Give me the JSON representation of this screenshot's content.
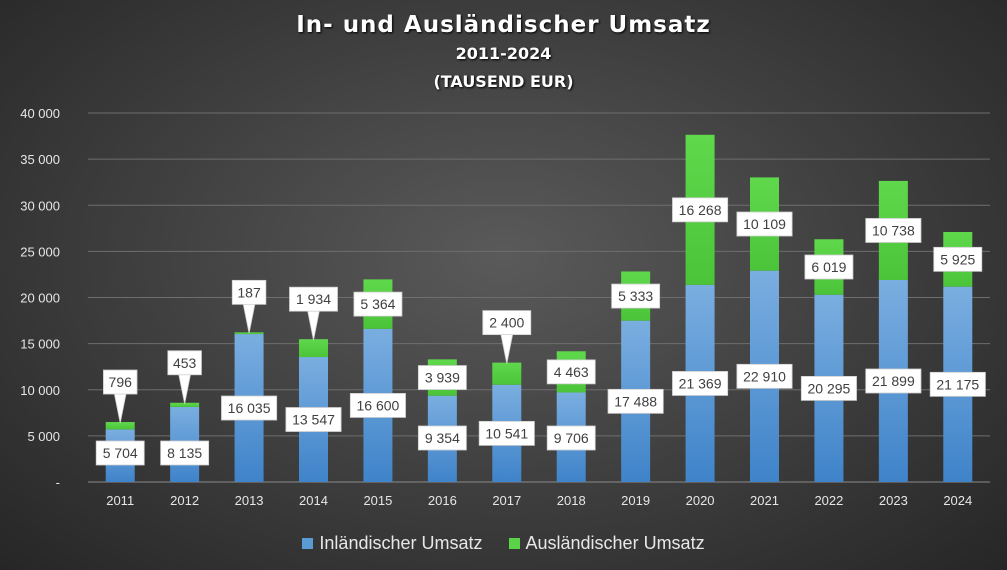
{
  "chart_data": {
    "type": "bar",
    "stacked": true,
    "title": "In- und Ausländischer Umsatz",
    "subtitle": "2011-2024",
    "subtitle2": "(TAUSEND EUR)",
    "categories": [
      "2011",
      "2012",
      "2013",
      "2014",
      "2015",
      "2016",
      "2017",
      "2018",
      "2019",
      "2020",
      "2021",
      "2022",
      "2023",
      "2024"
    ],
    "series": [
      {
        "name": "Inländischer Umsatz",
        "color": "#5b9bd5",
        "values": [
          5704,
          8135,
          16035,
          13547,
          16600,
          9354,
          10541,
          9706,
          17488,
          21369,
          22910,
          20295,
          21899,
          21175
        ]
      },
      {
        "name": "Ausländischer Umsatz",
        "color": "#5ad347",
        "values": [
          796,
          453,
          187,
          1934,
          5364,
          3939,
          2400,
          4463,
          5333,
          16268,
          10109,
          6019,
          10738,
          5925
        ]
      }
    ],
    "ylim": [
      0,
      40000
    ],
    "yticks": [
      "-",
      "5 000",
      "10 000",
      "15 000",
      "20 000",
      "25 000",
      "30 000",
      "35 000",
      "40 000"
    ],
    "grid": true,
    "legend": "bottom"
  }
}
